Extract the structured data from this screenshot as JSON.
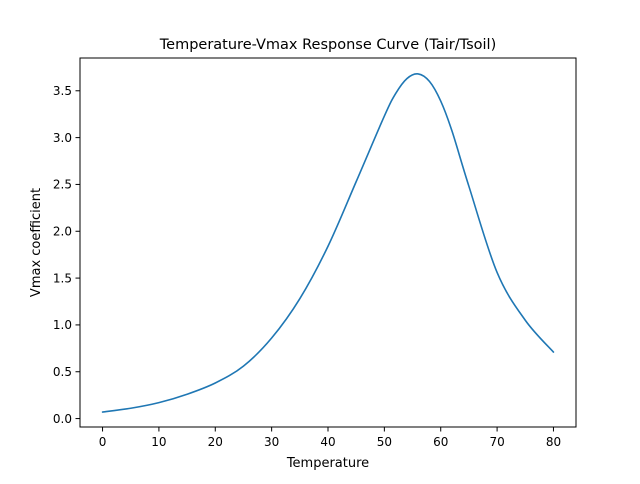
{
  "chart_data": {
    "type": "line",
    "title": "Temperature-Vmax Response Curve (Tair/Tsoil)",
    "xlabel": "Temperature",
    "ylabel": "Vmax coefficient",
    "xlim": [
      -4,
      84
    ],
    "ylim": [
      -0.09,
      3.85
    ],
    "xticks": [
      0,
      10,
      20,
      30,
      40,
      50,
      60,
      70,
      80
    ],
    "yticks": [
      0.0,
      0.5,
      1.0,
      1.5,
      2.0,
      2.5,
      3.0,
      3.5
    ],
    "xtick_labels": [
      "0",
      "10",
      "20",
      "30",
      "40",
      "50",
      "60",
      "70",
      "80"
    ],
    "ytick_labels": [
      "0.0",
      "0.5",
      "1.0",
      "1.5",
      "2.0",
      "2.5",
      "3.0",
      "3.5"
    ],
    "grid": false,
    "series": [
      {
        "color": "#1f77b4",
        "x": [
          0,
          5,
          10,
          15,
          20,
          25,
          30,
          35,
          40,
          45,
          50,
          52,
          54,
          56,
          58,
          60,
          62,
          65,
          70,
          75,
          80
        ],
        "y": [
          0.07,
          0.11,
          0.17,
          0.26,
          0.38,
          0.56,
          0.86,
          1.28,
          1.84,
          2.53,
          3.23,
          3.47,
          3.63,
          3.68,
          3.6,
          3.39,
          3.07,
          2.48,
          1.56,
          1.05,
          0.71
        ]
      }
    ]
  }
}
